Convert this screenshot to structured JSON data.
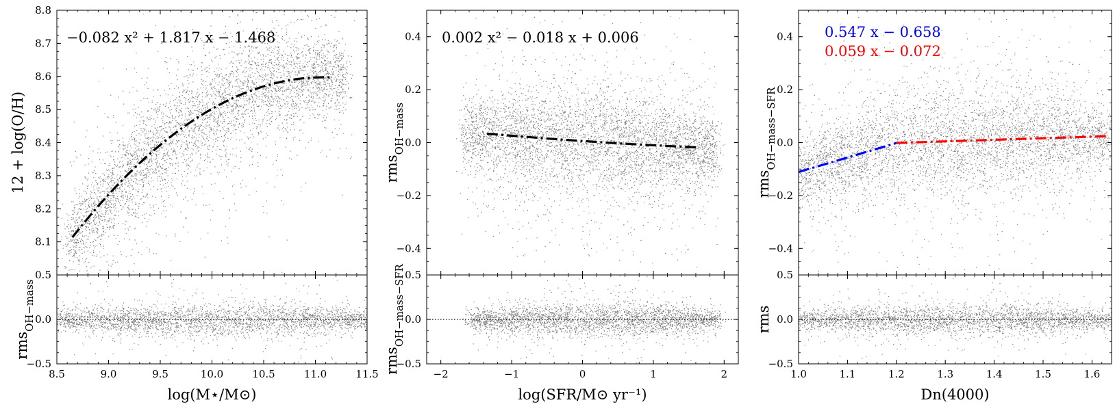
{
  "figure": {
    "colors": {
      "scatter": "#808080",
      "fit": "#000000",
      "fit_low": "#0000ff",
      "fit_high": "#ff0000"
    },
    "note": ""
  },
  "chart_data": [
    {
      "id": "p1-top",
      "type": "scatter",
      "xlim": [
        8.5,
        11.5
      ],
      "ylim": [
        8.0,
        8.8
      ],
      "xticks": [],
      "yticks": [
        "8.1",
        "8.2",
        "8.3",
        "8.4",
        "8.5",
        "8.6",
        "8.7",
        "8.8"
      ],
      "ytick_values": [
        8.1,
        8.2,
        8.3,
        8.4,
        8.5,
        8.6,
        8.7,
        8.8
      ],
      "ylabel": "12 + log(O/H)",
      "xlabel": "",
      "cloud": {
        "kind": "quadratic",
        "a": -0.082,
        "b": 1.817,
        "c": -1.468,
        "xmin": 8.6,
        "xmax": 11.3,
        "spread": 0.085
      },
      "fit_curves": [
        {
          "kind": "quadratic",
          "a": -0.082,
          "b": 1.817,
          "c": -1.468,
          "x": [
            8.65,
            11.15
          ],
          "color": "#000000"
        }
      ],
      "annotations": [
        {
          "text": "−0.082 x² + 1.817 x − 1.468",
          "color": "#000000"
        }
      ]
    },
    {
      "id": "p1-bottom",
      "type": "scatter",
      "xlim": [
        8.5,
        11.5
      ],
      "ylim": [
        -0.5,
        0.5
      ],
      "xticks": [
        "8.5",
        "9.0",
        "9.5",
        "10.0",
        "10.5",
        "11.0",
        "11.5"
      ],
      "xtick_values": [
        8.5,
        9.0,
        9.5,
        10.0,
        10.5,
        11.0,
        11.5
      ],
      "yticks": [
        "−0.5",
        "0.0",
        "0.5"
      ],
      "ytick_values": [
        -0.5,
        0.0,
        0.5
      ],
      "ylabel": "rms_OH−mass",
      "xlabel": "log(M⋆/M⊙)",
      "cloud": {
        "kind": "flat",
        "xmin": 8.5,
        "xmax": 11.5,
        "spread": 0.09
      },
      "zero_line": true
    },
    {
      "id": "p2-top",
      "type": "scatter",
      "xlim": [
        -2.2,
        2.2
      ],
      "ylim": [
        -0.5,
        0.5
      ],
      "xticks": [],
      "yticks": [
        "−0.4",
        "−0.2",
        "0.0",
        "0.2",
        "0.4"
      ],
      "ytick_values": [
        -0.4,
        -0.2,
        0.0,
        0.2,
        0.4
      ],
      "ylabel": "rms_OH−mass",
      "xlabel": "",
      "cloud": {
        "kind": "quadratic",
        "a": 0.002,
        "b": -0.018,
        "c": 0.006,
        "xmin": -1.7,
        "xmax": 1.9,
        "spread": 0.1
      },
      "fit_curves": [
        {
          "kind": "quadratic",
          "a": 0.002,
          "b": -0.018,
          "c": 0.006,
          "x": [
            -1.35,
            1.6
          ],
          "color": "#000000"
        }
      ],
      "annotations": [
        {
          "text": "0.002 x² − 0.018 x + 0.006",
          "color": "#000000"
        }
      ]
    },
    {
      "id": "p2-bottom",
      "type": "scatter",
      "xlim": [
        -2.2,
        2.2
      ],
      "ylim": [
        -0.5,
        0.5
      ],
      "xticks": [
        "−2",
        "−1",
        "0",
        "1",
        "2"
      ],
      "xtick_values": [
        -2,
        -1,
        0,
        1,
        2
      ],
      "yticks": [
        "−0.5",
        "0.0",
        "0.5"
      ],
      "ytick_values": [
        -0.5,
        0.0,
        0.5
      ],
      "ylabel": "rms_OH−mass−SFR",
      "xlabel": "log(SFR/M⊙ yr⁻¹)",
      "cloud": {
        "kind": "flat",
        "xmin": -1.6,
        "xmax": 1.9,
        "spread": 0.09
      },
      "zero_line": true
    },
    {
      "id": "p3-top",
      "type": "scatter",
      "xlim": [
        1.0,
        1.64
      ],
      "ylim": [
        -0.5,
        0.5
      ],
      "xticks": [],
      "yticks": [
        "−0.4",
        "−0.2",
        "0.0",
        "0.2",
        "0.4"
      ],
      "ytick_values": [
        -0.4,
        -0.2,
        0.0,
        0.2,
        0.4
      ],
      "ylabel": "rms_OH−mass−SFR",
      "xlabel": "",
      "cloud": {
        "kind": "piecewise",
        "m1": 0.547,
        "b1": -0.658,
        "m2": 0.059,
        "b2": -0.072,
        "break": 1.2,
        "xmin": 1.0,
        "xmax": 1.64,
        "spread": 0.1
      },
      "fit_curves": [
        {
          "kind": "linear",
          "m": 0.547,
          "b": -0.658,
          "x": [
            1.0,
            1.2
          ],
          "color": "#0000ff"
        },
        {
          "kind": "linear",
          "m": 0.059,
          "b": -0.072,
          "x": [
            1.2,
            1.63
          ],
          "color": "#ff0000"
        }
      ],
      "annotations": [
        {
          "text": "0.547 x − 0.658",
          "color": "#0000ff"
        },
        {
          "text": "0.059 x − 0.072",
          "color": "#ff0000"
        }
      ]
    },
    {
      "id": "p3-bottom",
      "type": "scatter",
      "xlim": [
        1.0,
        1.64
      ],
      "ylim": [
        -0.5,
        0.5
      ],
      "xticks": [
        "1.0",
        "1.1",
        "1.2",
        "1.3",
        "1.4",
        "1.5",
        "1.6"
      ],
      "xtick_values": [
        1.0,
        1.1,
        1.2,
        1.3,
        1.4,
        1.5,
        1.6
      ],
      "yticks": [
        "−0.5",
        "0.0",
        "0.5"
      ],
      "ytick_values": [
        -0.5,
        0.0,
        0.5
      ],
      "ylabel": "rms",
      "xlabel": "Dn(4000)",
      "cloud": {
        "kind": "flat",
        "xmin": 1.0,
        "xmax": 1.64,
        "spread": 0.085
      },
      "zero_line": true
    }
  ]
}
